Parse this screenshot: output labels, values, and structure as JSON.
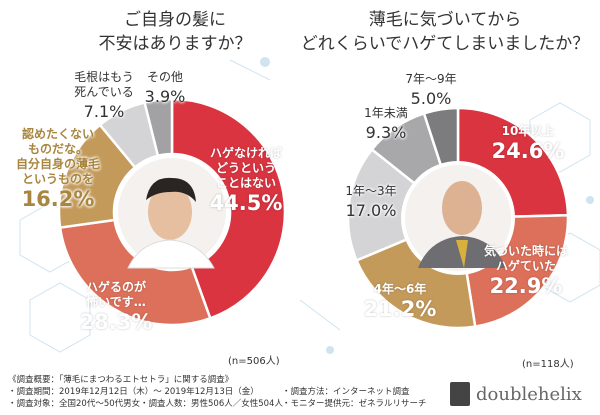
{
  "chart_data": [
    {
      "type": "pie",
      "donut": true,
      "title": "ご自身の髪に\n不安はありますか？",
      "sample": "(n=506人)",
      "slices": [
        {
          "label": "ハゲなければどうということはない",
          "value": 44.5,
          "pct": "44.5%",
          "color": "#d93440"
        },
        {
          "label": "ハゲるのが怖いです…",
          "value": 28.3,
          "pct": "28.3%",
          "color": "#dd705a"
        },
        {
          "label": "認めたくないものだな。自分自身の薄毛というものを",
          "value": 16.2,
          "pct": "16.2%",
          "color": "#c49a5a"
        },
        {
          "label": "毛根はもう死んでいる",
          "value": 7.1,
          "pct": "7.1%",
          "color": "#d4d4d6"
        },
        {
          "label": "その他",
          "value": 3.9,
          "pct": "3.9%",
          "color": "#a2a2a4"
        }
      ]
    },
    {
      "type": "pie",
      "donut": true,
      "title": "薄毛に気づいてから\nどれくらいでハゲてしまいましたか？",
      "sample": "(n=118人)",
      "slices": [
        {
          "label": "10年以上",
          "value": 24.6,
          "pct": "24.6%",
          "color": "#d93440"
        },
        {
          "label": "気づいた時にはハゲていた",
          "value": 22.9,
          "pct": "22.9%",
          "color": "#dd705a"
        },
        {
          "label": "4年〜6年",
          "value": 21.2,
          "pct": "21.2%",
          "color": "#c49a5a"
        },
        {
          "label": "1年〜3年",
          "value": 17.0,
          "pct": "17.0%",
          "color": "#d4d4d6"
        },
        {
          "label": "1年未満",
          "value": 9.3,
          "pct": "9.3%",
          "color": "#a8a8aa"
        },
        {
          "label": "7年〜9年",
          "value": 5.0,
          "pct": "5.0%",
          "color": "#7c7c7e"
        }
      ]
    }
  ],
  "labels_left": {
    "a1": "ハゲなければ",
    "a2": "どうという",
    "a3": "ことはない",
    "b1": "ハゲるのが",
    "b2": "怖いです…",
    "c1": "認めたくない",
    "c2": "ものだな。",
    "c3": "自分自身の薄毛",
    "c4": "というものを",
    "d1": "毛根はもう",
    "d2": "死んでいる",
    "e1": "その他"
  },
  "labels_right": {
    "a1": "10年以上",
    "b1": "気づいた時には",
    "b2": "ハゲていた",
    "c1": "4年〜6年",
    "d1": "1年〜3年",
    "e1": "1年未満",
    "f1": "7年〜9年"
  },
  "footer": {
    "heading": "《調査概要：「薄毛にまつわるエトセトラ」に関する調査》",
    "period": "・調査期間：2019年12月12日（木）〜 2019年12月13日（金）",
    "method": "・調査方法：インターネット調査",
    "target": "・調査対象：全国20代〜50代男女",
    "count": "・調査人数：男性506人／女性504人",
    "provider": "・モニター提供元：ゼネラルリサーチ"
  },
  "brand": "doublehelix"
}
